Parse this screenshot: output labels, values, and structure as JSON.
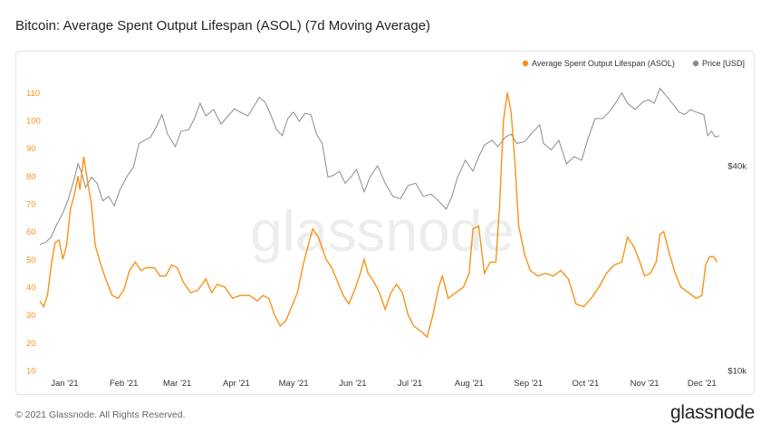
{
  "title": "Bitcoin: Average Spent Output Lifespan (ASOL) (7d Moving Average)",
  "footer": {
    "copyright": "© 2021 Glassnode. All Rights Reserved.",
    "logo": "glassnode"
  },
  "watermark": "glassnode",
  "colors": {
    "asol": "#f7931a",
    "price": "#8c8c8c",
    "left_axis": "#f7931a",
    "right_axis": "#333333"
  },
  "chart_data": {
    "type": "line",
    "x_axis": {
      "type": "date",
      "range": [
        "2020-12-19",
        "2021-12-12"
      ],
      "ticks": [
        {
          "date": "2021-01-01",
          "label": "Jan '21"
        },
        {
          "date": "2021-02-01",
          "label": "Feb '21"
        },
        {
          "date": "2021-03-01",
          "label": "Mar '21"
        },
        {
          "date": "2021-04-01",
          "label": "Apr '21"
        },
        {
          "date": "2021-05-01",
          "label": "May '21"
        },
        {
          "date": "2021-06-01",
          "label": "Jun '21"
        },
        {
          "date": "2021-07-01",
          "label": "Jul '21"
        },
        {
          "date": "2021-08-01",
          "label": "Aug '21"
        },
        {
          "date": "2021-09-01",
          "label": "Sep '21"
        },
        {
          "date": "2021-10-01",
          "label": "Oct '21"
        },
        {
          "date": "2021-11-01",
          "label": "Nov '21"
        },
        {
          "date": "2021-12-01",
          "label": "Dec '21"
        }
      ]
    },
    "y_left": {
      "range": [
        10,
        115
      ],
      "ticks": [
        10,
        20,
        30,
        40,
        50,
        60,
        70,
        80,
        90,
        100,
        110
      ]
    },
    "y_right": {
      "scale": "log",
      "range": [
        10000,
        72000
      ],
      "ticks": [
        {
          "value": 10000,
          "label": "$10k"
        },
        {
          "value": 40000,
          "label": "$40k"
        }
      ]
    },
    "legend": {
      "placement": "top-right"
    },
    "grid": false,
    "series": [
      {
        "name": "Average Spent Output Lifespan (ASOL)",
        "axis": "left",
        "color": "#f7931a",
        "points": [
          [
            "2020-12-19",
            35
          ],
          [
            "2020-12-21",
            33
          ],
          [
            "2020-12-23",
            37
          ],
          [
            "2020-12-25",
            48
          ],
          [
            "2020-12-27",
            56
          ],
          [
            "2020-12-29",
            57
          ],
          [
            "2020-12-31",
            50
          ],
          [
            "2021-01-02",
            55
          ],
          [
            "2021-01-04",
            68
          ],
          [
            "2021-01-06",
            73
          ],
          [
            "2021-01-08",
            80
          ],
          [
            "2021-01-09",
            75
          ],
          [
            "2021-01-11",
            87
          ],
          [
            "2021-01-13",
            78
          ],
          [
            "2021-01-15",
            70
          ],
          [
            "2021-01-17",
            55
          ],
          [
            "2021-01-20",
            48
          ],
          [
            "2021-01-23",
            42
          ],
          [
            "2021-01-26",
            37
          ],
          [
            "2021-01-29",
            36
          ],
          [
            "2021-02-01",
            39
          ],
          [
            "2021-02-04",
            46
          ],
          [
            "2021-02-07",
            49
          ],
          [
            "2021-02-10",
            46
          ],
          [
            "2021-02-13",
            47
          ],
          [
            "2021-02-17",
            47
          ],
          [
            "2021-02-20",
            44
          ],
          [
            "2021-02-23",
            44
          ],
          [
            "2021-02-26",
            48
          ],
          [
            "2021-03-01",
            47
          ],
          [
            "2021-03-04",
            42
          ],
          [
            "2021-03-08",
            38
          ],
          [
            "2021-03-12",
            39
          ],
          [
            "2021-03-16",
            43
          ],
          [
            "2021-03-19",
            38
          ],
          [
            "2021-03-22",
            41
          ],
          [
            "2021-03-26",
            40
          ],
          [
            "2021-03-30",
            36
          ],
          [
            "2021-04-03",
            37
          ],
          [
            "2021-04-08",
            37
          ],
          [
            "2021-04-12",
            35
          ],
          [
            "2021-04-15",
            37
          ],
          [
            "2021-04-18",
            36
          ],
          [
            "2021-04-21",
            30
          ],
          [
            "2021-04-24",
            26
          ],
          [
            "2021-04-27",
            28
          ],
          [
            "2021-04-30",
            33
          ],
          [
            "2021-05-03",
            38
          ],
          [
            "2021-05-06",
            48
          ],
          [
            "2021-05-09",
            56
          ],
          [
            "2021-05-11",
            61
          ],
          [
            "2021-05-14",
            58
          ],
          [
            "2021-05-18",
            50
          ],
          [
            "2021-05-21",
            47
          ],
          [
            "2021-05-24",
            42
          ],
          [
            "2021-05-27",
            37
          ],
          [
            "2021-05-30",
            34
          ],
          [
            "2021-06-02",
            39
          ],
          [
            "2021-06-05",
            45
          ],
          [
            "2021-06-07",
            50
          ],
          [
            "2021-06-09",
            45
          ],
          [
            "2021-06-12",
            42
          ],
          [
            "2021-06-15",
            38
          ],
          [
            "2021-06-18",
            32
          ],
          [
            "2021-06-21",
            38
          ],
          [
            "2021-06-24",
            41
          ],
          [
            "2021-06-27",
            38
          ],
          [
            "2021-06-30",
            30
          ],
          [
            "2021-07-03",
            26
          ],
          [
            "2021-07-07",
            24
          ],
          [
            "2021-07-10",
            22
          ],
          [
            "2021-07-13",
            30
          ],
          [
            "2021-07-16",
            40
          ],
          [
            "2021-07-18",
            44
          ],
          [
            "2021-07-21",
            36
          ],
          [
            "2021-07-25",
            38
          ],
          [
            "2021-07-29",
            40
          ],
          [
            "2021-08-01",
            45
          ],
          [
            "2021-08-03",
            61
          ],
          [
            "2021-08-06",
            62
          ],
          [
            "2021-08-09",
            45
          ],
          [
            "2021-08-12",
            49
          ],
          [
            "2021-08-15",
            49
          ],
          [
            "2021-08-17",
            70
          ],
          [
            "2021-08-19",
            100
          ],
          [
            "2021-08-21",
            110
          ],
          [
            "2021-08-23",
            103
          ],
          [
            "2021-08-25",
            85
          ],
          [
            "2021-08-27",
            62
          ],
          [
            "2021-08-30",
            52
          ],
          [
            "2021-09-02",
            46
          ],
          [
            "2021-09-06",
            44
          ],
          [
            "2021-09-10",
            45
          ],
          [
            "2021-09-14",
            44
          ],
          [
            "2021-09-18",
            46
          ],
          [
            "2021-09-22",
            43
          ],
          [
            "2021-09-26",
            34
          ],
          [
            "2021-09-30",
            33
          ],
          [
            "2021-10-04",
            36
          ],
          [
            "2021-10-08",
            40
          ],
          [
            "2021-10-12",
            45
          ],
          [
            "2021-10-16",
            48
          ],
          [
            "2021-10-20",
            49
          ],
          [
            "2021-10-23",
            58
          ],
          [
            "2021-10-26",
            55
          ],
          [
            "2021-10-29",
            50
          ],
          [
            "2021-11-01",
            44
          ],
          [
            "2021-11-04",
            45
          ],
          [
            "2021-11-07",
            49
          ],
          [
            "2021-11-09",
            59
          ],
          [
            "2021-11-11",
            60
          ],
          [
            "2021-11-14",
            52
          ],
          [
            "2021-11-17",
            45
          ],
          [
            "2021-11-20",
            40
          ],
          [
            "2021-11-24",
            38
          ],
          [
            "2021-11-28",
            36
          ],
          [
            "2021-12-01",
            37
          ],
          [
            "2021-12-03",
            48
          ],
          [
            "2021-12-05",
            51
          ],
          [
            "2021-12-07",
            51
          ],
          [
            "2021-12-09",
            49
          ]
        ]
      },
      {
        "name": "Price [USD]",
        "axis": "right",
        "color": "#8c8c8c",
        "points": [
          [
            "2020-12-19",
            23500
          ],
          [
            "2020-12-22",
            23800
          ],
          [
            "2020-12-25",
            24700
          ],
          [
            "2020-12-28",
            27000
          ],
          [
            "2020-12-31",
            29000
          ],
          [
            "2021-01-03",
            32000
          ],
          [
            "2021-01-06",
            36500
          ],
          [
            "2021-01-08",
            40500
          ],
          [
            "2021-01-10",
            38000
          ],
          [
            "2021-01-12",
            34500
          ],
          [
            "2021-01-15",
            37000
          ],
          [
            "2021-01-18",
            35500
          ],
          [
            "2021-01-21",
            31500
          ],
          [
            "2021-01-24",
            32500
          ],
          [
            "2021-01-27",
            30500
          ],
          [
            "2021-01-30",
            34000
          ],
          [
            "2021-02-03",
            37500
          ],
          [
            "2021-02-06",
            39500
          ],
          [
            "2021-02-09",
            46500
          ],
          [
            "2021-02-12",
            47500
          ],
          [
            "2021-02-15",
            48500
          ],
          [
            "2021-02-18",
            52000
          ],
          [
            "2021-02-21",
            56500
          ],
          [
            "2021-02-24",
            49500
          ],
          [
            "2021-02-28",
            45500
          ],
          [
            "2021-03-03",
            50500
          ],
          [
            "2021-03-07",
            51000
          ],
          [
            "2021-03-10",
            55000
          ],
          [
            "2021-03-13",
            61000
          ],
          [
            "2021-03-16",
            56000
          ],
          [
            "2021-03-20",
            58500
          ],
          [
            "2021-03-24",
            53000
          ],
          [
            "2021-03-27",
            55500
          ],
          [
            "2021-03-31",
            58800
          ],
          [
            "2021-04-03",
            57500
          ],
          [
            "2021-04-07",
            56000
          ],
          [
            "2021-04-10",
            59500
          ],
          [
            "2021-04-13",
            63500
          ],
          [
            "2021-04-16",
            61500
          ],
          [
            "2021-04-19",
            56500
          ],
          [
            "2021-04-22",
            51000
          ],
          [
            "2021-04-25",
            49000
          ],
          [
            "2021-04-28",
            55000
          ],
          [
            "2021-05-01",
            57500
          ],
          [
            "2021-05-04",
            54000
          ],
          [
            "2021-05-07",
            57000
          ],
          [
            "2021-05-10",
            56500
          ],
          [
            "2021-05-13",
            49500
          ],
          [
            "2021-05-16",
            46500
          ],
          [
            "2021-05-19",
            37000
          ],
          [
            "2021-05-22",
            37500
          ],
          [
            "2021-05-25",
            38500
          ],
          [
            "2021-05-28",
            35500
          ],
          [
            "2021-05-31",
            37000
          ],
          [
            "2021-06-03",
            39000
          ],
          [
            "2021-06-07",
            33500
          ],
          [
            "2021-06-10",
            37000
          ],
          [
            "2021-06-14",
            40000
          ],
          [
            "2021-06-18",
            35500
          ],
          [
            "2021-06-22",
            32500
          ],
          [
            "2021-06-26",
            32000
          ],
          [
            "2021-06-30",
            35000
          ],
          [
            "2021-07-04",
            35500
          ],
          [
            "2021-07-08",
            32500
          ],
          [
            "2021-07-12",
            33000
          ],
          [
            "2021-07-16",
            31500
          ],
          [
            "2021-07-20",
            29800
          ],
          [
            "2021-07-23",
            32500
          ],
          [
            "2021-07-26",
            37000
          ],
          [
            "2021-07-30",
            41500
          ],
          [
            "2021-08-03",
            38500
          ],
          [
            "2021-08-06",
            42500
          ],
          [
            "2021-08-09",
            46000
          ],
          [
            "2021-08-13",
            47500
          ],
          [
            "2021-08-16",
            45500
          ],
          [
            "2021-08-20",
            48500
          ],
          [
            "2021-08-23",
            49500
          ],
          [
            "2021-08-26",
            46500
          ],
          [
            "2021-08-30",
            47000
          ],
          [
            "2021-09-03",
            50000
          ],
          [
            "2021-09-07",
            52700
          ],
          [
            "2021-09-09",
            46500
          ],
          [
            "2021-09-13",
            44500
          ],
          [
            "2021-09-17",
            47500
          ],
          [
            "2021-09-21",
            40500
          ],
          [
            "2021-09-25",
            42500
          ],
          [
            "2021-09-29",
            41500
          ],
          [
            "2021-10-02",
            47500
          ],
          [
            "2021-10-06",
            55000
          ],
          [
            "2021-10-10",
            55000
          ],
          [
            "2021-10-14",
            58000
          ],
          [
            "2021-10-17",
            61500
          ],
          [
            "2021-10-20",
            65500
          ],
          [
            "2021-10-23",
            61000
          ],
          [
            "2021-10-27",
            58500
          ],
          [
            "2021-10-31",
            61500
          ],
          [
            "2021-11-03",
            62500
          ],
          [
            "2021-11-06",
            61000
          ],
          [
            "2021-11-09",
            67500
          ],
          [
            "2021-11-12",
            64500
          ],
          [
            "2021-11-16",
            60500
          ],
          [
            "2021-11-19",
            57500
          ],
          [
            "2021-11-22",
            56500
          ],
          [
            "2021-11-25",
            58500
          ],
          [
            "2021-11-28",
            57500
          ],
          [
            "2021-11-30",
            57000
          ],
          [
            "2021-12-02",
            56500
          ],
          [
            "2021-12-04",
            49000
          ],
          [
            "2021-12-06",
            50500
          ],
          [
            "2021-12-08",
            48500
          ],
          [
            "2021-12-10",
            49000
          ]
        ]
      }
    ]
  }
}
